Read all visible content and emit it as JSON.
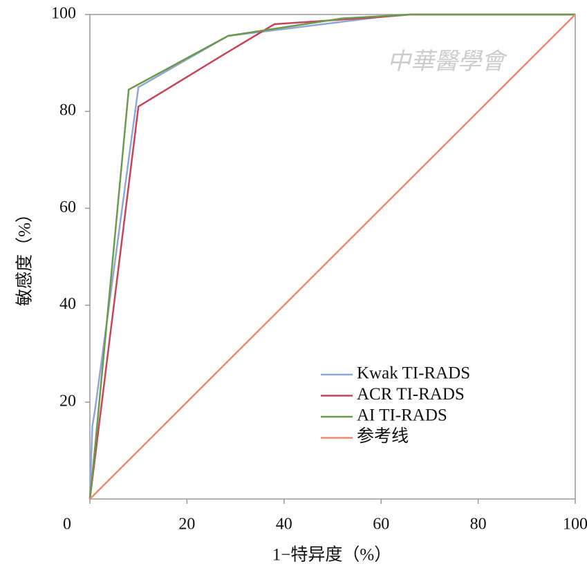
{
  "chart_data": {
    "type": "line",
    "xlabel": "1−特异度（%）",
    "ylabel": "敏感度（%）",
    "watermark": "中華醫學會",
    "xlim": [
      0,
      100
    ],
    "ylim": [
      0,
      100
    ],
    "xticks": [
      0,
      20,
      40,
      60,
      80,
      100
    ],
    "yticks": [
      20,
      40,
      60,
      80,
      100
    ],
    "series": [
      {
        "name": "Kwak TI-RADS",
        "color": "#8fa6d8",
        "x": [
          0,
          0.5,
          1,
          10,
          28.5,
          40,
          60,
          66,
          100
        ],
        "values": [
          0,
          15,
          18,
          85,
          95.6,
          97,
          99.5,
          100,
          100
        ]
      },
      {
        "name": "ACR TI-RADS",
        "color": "#c94459",
        "x": [
          0,
          10,
          28,
          38,
          60,
          66,
          100
        ],
        "values": [
          0,
          81,
          92,
          98,
          99.5,
          100,
          100
        ]
      },
      {
        "name": "AI TI-RADS",
        "color": "#6b9a4c",
        "x": [
          0,
          1,
          8,
          28.5,
          52,
          66,
          100
        ],
        "values": [
          0,
          10,
          84.5,
          95.6,
          99.2,
          100,
          100
        ]
      },
      {
        "name": "参考线",
        "color": "#f0896a",
        "x": [
          0,
          100
        ],
        "values": [
          0,
          100
        ]
      }
    ]
  }
}
